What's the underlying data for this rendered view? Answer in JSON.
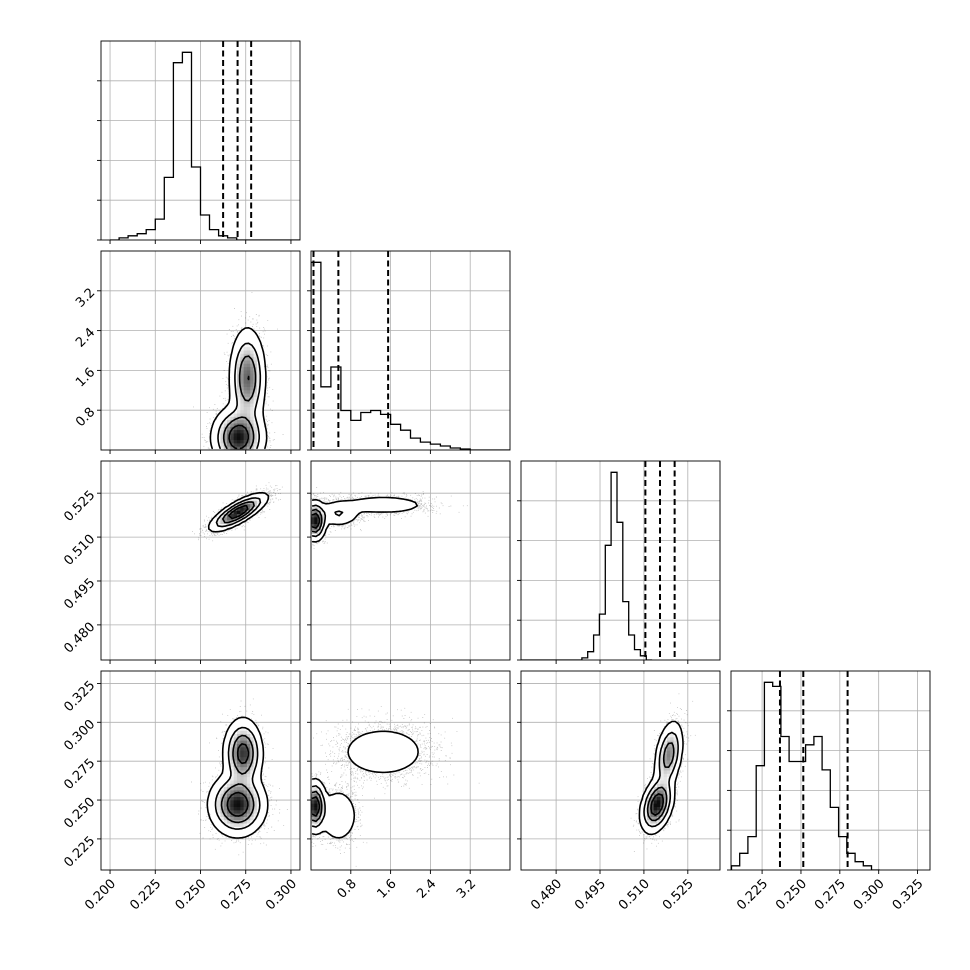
{
  "colors": {
    "hist_line": "#000000",
    "grid": "#b0b0b0",
    "axes_frame": "#000000",
    "density": "#000000"
  },
  "chart_data": {
    "type": "corner",
    "grid": true,
    "n_params": 4,
    "params": [
      {
        "range": [
          0.195,
          0.305
        ],
        "ticks": [
          0.2,
          0.225,
          0.25,
          0.275,
          0.3
        ],
        "tick_labels": [
          "0.200",
          "0.225",
          "0.250",
          "0.275",
          "0.300"
        ]
      },
      {
        "range": [
          0.0,
          4.0
        ],
        "ticks": [
          0.8,
          1.6,
          2.4,
          3.2
        ],
        "tick_labels": [
          "0.8",
          "1.6",
          "2.4",
          "3.2"
        ]
      },
      {
        "range": [
          0.468,
          0.536
        ],
        "ticks": [
          0.48,
          0.495,
          0.51,
          0.525
        ],
        "tick_labels": [
          "0.480",
          "0.495",
          "0.510",
          "0.525"
        ]
      },
      {
        "range": [
          0.205,
          0.333
        ],
        "ticks": [
          0.225,
          0.25,
          0.275,
          0.3,
          0.325
        ],
        "tick_labels": [
          "0.225",
          "0.250",
          "0.275",
          "0.300",
          "0.325"
        ]
      }
    ],
    "histograms": [
      {
        "param": 0,
        "edges_start": 0.2,
        "bin_width": 0.005,
        "counts": [
          0,
          1,
          2,
          3,
          5,
          10,
          30,
          85,
          90,
          35,
          12,
          5,
          2,
          1,
          0,
          0,
          0,
          0,
          0,
          0,
          0,
          0
        ],
        "quantiles": [
          0.2625,
          0.2705,
          0.278
        ]
      },
      {
        "param": 1,
        "edges_start": 0.0,
        "bin_width": 0.2,
        "counts": [
          95,
          32,
          42,
          20,
          15,
          19,
          20,
          18,
          13,
          10,
          6,
          4,
          3,
          2,
          1,
          0.5,
          0,
          0,
          0,
          0
        ],
        "quantiles": [
          0.05,
          0.55,
          1.55
        ]
      },
      {
        "param": 2,
        "edges_start": 0.4668,
        "bin_width": 0.002,
        "counts": [
          0,
          0,
          0,
          0,
          0,
          0,
          0,
          0,
          0,
          0,
          0,
          1,
          4,
          12,
          22,
          55,
          90,
          66,
          28,
          12,
          5,
          2,
          0
        ],
        "quantiles": [
          0.5105,
          0.5155,
          0.5205
        ]
      },
      {
        "param": 3,
        "edges_start": 0.2,
        "bin_width": 0.0053,
        "counts": [
          0,
          1,
          4,
          8,
          25,
          45,
          44,
          32,
          26,
          26,
          30,
          32,
          24,
          15,
          8,
          4,
          2,
          1,
          0
        ],
        "quantiles": [
          0.2365,
          0.2515,
          0.28
        ]
      }
    ],
    "density_pairs": [
      {
        "x_param": 0,
        "y_param": 1,
        "modes": [
          {
            "x": 0.271,
            "y": 0.25,
            "sx": 0.0065,
            "sy": 0.28,
            "rho": 0.0,
            "w": 0.55
          },
          {
            "x": 0.276,
            "y": 1.45,
            "sx": 0.0045,
            "sy": 0.45,
            "rho": 0.0,
            "w": 0.45
          }
        ]
      },
      {
        "x_param": 0,
        "y_param": 2,
        "modes": [
          {
            "x": 0.271,
            "y": 0.5185,
            "sx": 0.007,
            "sy": 0.0028,
            "rho": 0.78,
            "w": 1.0
          }
        ]
      },
      {
        "x_param": 1,
        "y_param": 2,
        "modes": [
          {
            "x": 0.08,
            "y": 0.5155,
            "sx": 0.1,
            "sy": 0.003,
            "rho": 0.0,
            "w": 0.55
          },
          {
            "x": 0.55,
            "y": 0.518,
            "sx": 0.22,
            "sy": 0.0022,
            "rho": 0.0,
            "w": 0.2
          },
          {
            "x": 1.45,
            "y": 0.521,
            "sx": 0.45,
            "sy": 0.0016,
            "rho": 0.0,
            "w": 0.25
          }
        ]
      },
      {
        "x_param": 0,
        "y_param": 3,
        "modes": [
          {
            "x": 0.2705,
            "y": 0.247,
            "sx": 0.007,
            "sy": 0.009,
            "rho": 0.0,
            "w": 0.6
          },
          {
            "x": 0.2735,
            "y": 0.28,
            "sx": 0.0048,
            "sy": 0.01,
            "rho": 0.0,
            "w": 0.4
          }
        ]
      },
      {
        "x_param": 1,
        "y_param": 3,
        "modes": [
          {
            "x": 0.08,
            "y": 0.246,
            "sx": 0.1,
            "sy": 0.0075,
            "rho": 0.0,
            "w": 0.4
          },
          {
            "x": 0.55,
            "y": 0.24,
            "sx": 0.2,
            "sy": 0.009,
            "rho": 0.0,
            "w": 0.2
          },
          {
            "x": 1.45,
            "y": 0.281,
            "sx": 0.48,
            "sy": 0.009,
            "rho": 0.0,
            "w": 0.4
          }
        ]
      },
      {
        "x_param": 2,
        "y_param": 3,
        "modes": [
          {
            "x": 0.5145,
            "y": 0.247,
            "sx": 0.0025,
            "sy": 0.008,
            "rho": 0.35,
            "w": 0.6
          },
          {
            "x": 0.5185,
            "y": 0.279,
            "sx": 0.0022,
            "sy": 0.01,
            "rho": 0.35,
            "w": 0.4
          }
        ]
      }
    ]
  }
}
